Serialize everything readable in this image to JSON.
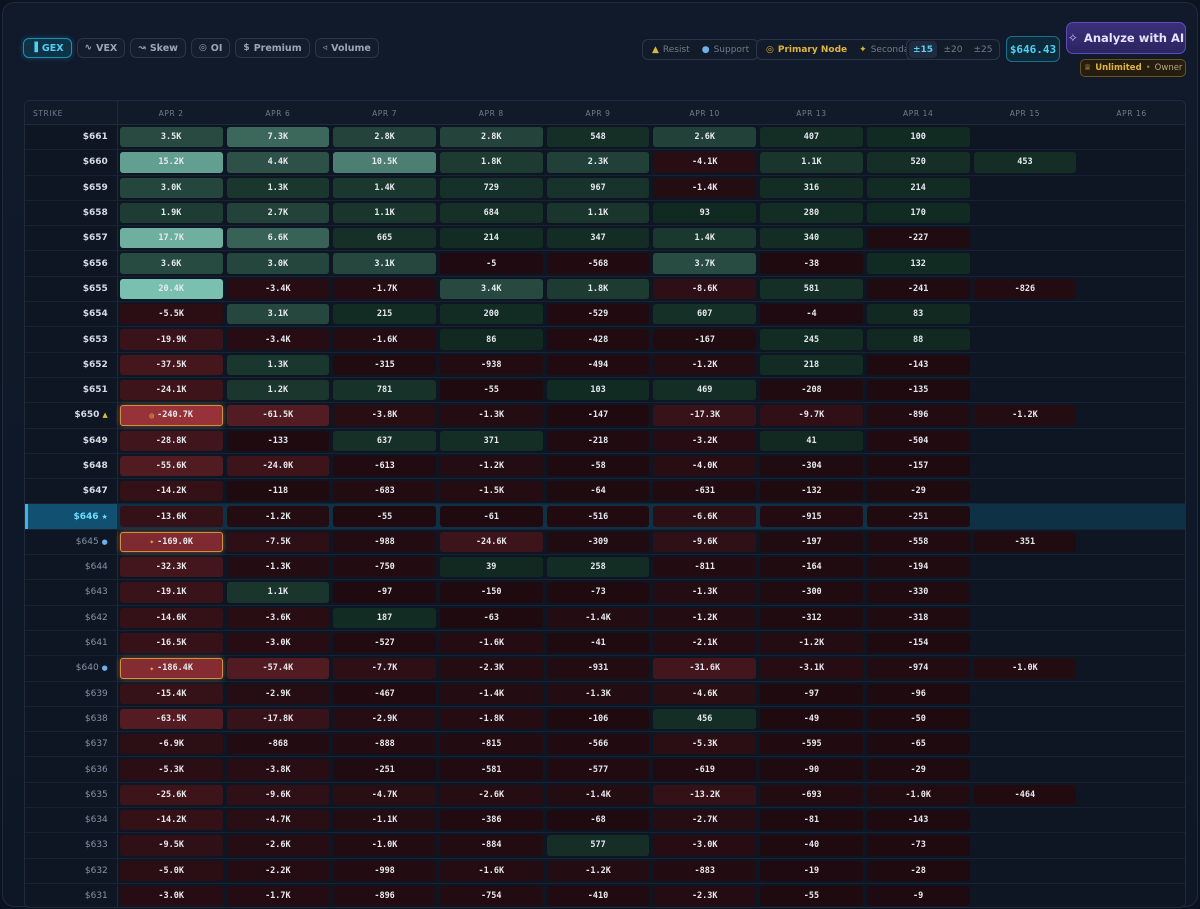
{
  "toolbar": {
    "metric_tabs": [
      {
        "label": "GEX",
        "icon": "bar-chart-icon",
        "glyph": "▐",
        "active": true
      },
      {
        "label": "VEX",
        "icon": "activity-icon",
        "glyph": "∿",
        "active": false
      },
      {
        "label": "Skew",
        "icon": "trend-icon",
        "glyph": "↝",
        "active": false
      },
      {
        "label": "OI",
        "icon": "target-icon",
        "glyph": "◎",
        "active": false
      },
      {
        "label": "Premium",
        "icon": "dollar-icon",
        "glyph": "$",
        "active": false
      },
      {
        "label": "Volume",
        "icon": "speaker-icon",
        "glyph": "◃",
        "active": false
      }
    ],
    "legend_levels": {
      "resist_label": "Resist",
      "support_label": "Support"
    },
    "legend_nodes": {
      "primary_label": "Primary Node",
      "secondary_label": "Secondary"
    },
    "ranges": [
      {
        "label": "±15",
        "active": true
      },
      {
        "label": "±20",
        "active": false
      },
      {
        "label": "±25",
        "active": false
      }
    ],
    "price": "$646.43",
    "ai_button_label": "Analyze with AI",
    "plan": {
      "tier": "Unlimited",
      "sep": "•",
      "role": "Owner"
    }
  },
  "grid": {
    "strike_header": "STRIKE",
    "columns": [
      "APR 2",
      "APR 6",
      "APR 7",
      "APR 8",
      "APR 9",
      "APR 10",
      "APR 13",
      "APR 14",
      "APR 15",
      "APR 16"
    ],
    "colors": {
      "positive": "#2f7f6a",
      "negative": "#6b1f28",
      "current_row": "#0f3145"
    },
    "rows": [
      {
        "strike": "$661",
        "values": [
          "3.5K",
          "7.3K",
          "2.8K",
          "2.8K",
          "548",
          "2.6K",
          "407",
          "100",
          "",
          ""
        ]
      },
      {
        "strike": "$660",
        "values": [
          "15.2K",
          "4.4K",
          "10.5K",
          "1.8K",
          "2.3K",
          "-4.1K",
          "1.1K",
          "520",
          "453",
          ""
        ]
      },
      {
        "strike": "$659",
        "values": [
          "3.0K",
          "1.3K",
          "1.4K",
          "729",
          "967",
          "-1.4K",
          "316",
          "214",
          "",
          ""
        ]
      },
      {
        "strike": "$658",
        "values": [
          "1.9K",
          "2.7K",
          "1.1K",
          "684",
          "1.1K",
          "93",
          "280",
          "170",
          "",
          ""
        ]
      },
      {
        "strike": "$657",
        "values": [
          "17.7K",
          "6.6K",
          "665",
          "214",
          "347",
          "1.4K",
          "340",
          "-227",
          "",
          ""
        ]
      },
      {
        "strike": "$656",
        "values": [
          "3.6K",
          "3.0K",
          "3.1K",
          "-5",
          "-568",
          "3.7K",
          "-38",
          "132",
          "",
          ""
        ]
      },
      {
        "strike": "$655",
        "values": [
          "20.4K",
          "-3.4K",
          "-1.7K",
          "3.4K",
          "1.8K",
          "-8.6K",
          "581",
          "-241",
          "-826",
          ""
        ]
      },
      {
        "strike": "$654",
        "values": [
          "-5.5K",
          "3.1K",
          "215",
          "200",
          "-529",
          "607",
          "-4",
          "83",
          "",
          ""
        ]
      },
      {
        "strike": "$653",
        "values": [
          "-19.9K",
          "-3.4K",
          "-1.6K",
          "86",
          "-428",
          "-167",
          "245",
          "88",
          "",
          ""
        ]
      },
      {
        "strike": "$652",
        "values": [
          "-37.5K",
          "1.3K",
          "-315",
          "-938",
          "-494",
          "-1.2K",
          "218",
          "-143",
          "",
          ""
        ]
      },
      {
        "strike": "$651",
        "values": [
          "-24.1K",
          "1.2K",
          "781",
          "-55",
          "103",
          "469",
          "-208",
          "-135",
          "",
          ""
        ]
      },
      {
        "strike": "$650",
        "marker": "resist",
        "node": {
          "col": 0,
          "type": "primary"
        },
        "values": [
          "-240.7K",
          "-61.5K",
          "-3.8K",
          "-1.3K",
          "-147",
          "-17.3K",
          "-9.7K",
          "-896",
          "-1.2K",
          ""
        ]
      },
      {
        "strike": "$649",
        "values": [
          "-28.8K",
          "-133",
          "637",
          "371",
          "-218",
          "-3.2K",
          "41",
          "-504",
          "",
          ""
        ]
      },
      {
        "strike": "$648",
        "values": [
          "-55.6K",
          "-24.0K",
          "-613",
          "-1.2K",
          "-58",
          "-4.0K",
          "-304",
          "-157",
          "",
          ""
        ]
      },
      {
        "strike": "$647",
        "values": [
          "-14.2K",
          "-118",
          "-683",
          "-1.5K",
          "-64",
          "-631",
          "-132",
          "-29",
          "",
          ""
        ]
      },
      {
        "strike": "$646",
        "marker": "current",
        "values": [
          "-13.6K",
          "-1.2K",
          "-55",
          "-61",
          "-516",
          "-6.6K",
          "-915",
          "-251",
          "",
          ""
        ]
      },
      {
        "strike": "$645",
        "marker": "support",
        "node": {
          "col": 0,
          "type": "secondary"
        },
        "values": [
          "-169.0K",
          "-7.5K",
          "-988",
          "-24.6K",
          "-309",
          "-9.6K",
          "-197",
          "-558",
          "-351",
          ""
        ]
      },
      {
        "strike": "$644",
        "values": [
          "-32.3K",
          "-1.3K",
          "-750",
          "39",
          "258",
          "-811",
          "-164",
          "-194",
          "",
          ""
        ]
      },
      {
        "strike": "$643",
        "values": [
          "-19.1K",
          "1.1K",
          "-97",
          "-150",
          "-73",
          "-1.3K",
          "-300",
          "-330",
          "",
          ""
        ]
      },
      {
        "strike": "$642",
        "values": [
          "-14.6K",
          "-3.6K",
          "187",
          "-63",
          "-1.4K",
          "-1.2K",
          "-312",
          "-318",
          "",
          ""
        ]
      },
      {
        "strike": "$641",
        "values": [
          "-16.5K",
          "-3.0K",
          "-527",
          "-1.6K",
          "-41",
          "-2.1K",
          "-1.2K",
          "-154",
          "",
          ""
        ]
      },
      {
        "strike": "$640",
        "marker": "support",
        "node": {
          "col": 0,
          "type": "secondary"
        },
        "values": [
          "-186.4K",
          "-57.4K",
          "-7.7K",
          "-2.3K",
          "-931",
          "-31.6K",
          "-3.1K",
          "-974",
          "-1.0K",
          ""
        ]
      },
      {
        "strike": "$639",
        "values": [
          "-15.4K",
          "-2.9K",
          "-467",
          "-1.4K",
          "-1.3K",
          "-4.6K",
          "-97",
          "-96",
          "",
          ""
        ]
      },
      {
        "strike": "$638",
        "values": [
          "-63.5K",
          "-17.8K",
          "-2.9K",
          "-1.8K",
          "-106",
          "456",
          "-49",
          "-50",
          "",
          ""
        ]
      },
      {
        "strike": "$637",
        "values": [
          "-6.9K",
          "-868",
          "-888",
          "-815",
          "-566",
          "-5.3K",
          "-595",
          "-65",
          "",
          ""
        ]
      },
      {
        "strike": "$636",
        "values": [
          "-5.3K",
          "-3.8K",
          "-251",
          "-581",
          "-577",
          "-619",
          "-90",
          "-29",
          "",
          ""
        ]
      },
      {
        "strike": "$635",
        "values": [
          "-25.6K",
          "-9.6K",
          "-4.7K",
          "-2.6K",
          "-1.4K",
          "-13.2K",
          "-693",
          "-1.0K",
          "-464",
          ""
        ]
      },
      {
        "strike": "$634",
        "values": [
          "-14.2K",
          "-4.7K",
          "-1.1K",
          "-386",
          "-68",
          "-2.7K",
          "-81",
          "-143",
          "",
          ""
        ]
      },
      {
        "strike": "$633",
        "values": [
          "-9.5K",
          "-2.6K",
          "-1.0K",
          "-884",
          "577",
          "-3.0K",
          "-40",
          "-73",
          "",
          ""
        ]
      },
      {
        "strike": "$632",
        "values": [
          "-5.0K",
          "-2.2K",
          "-998",
          "-1.6K",
          "-1.2K",
          "-883",
          "-19",
          "-28",
          "",
          ""
        ]
      },
      {
        "strike": "$631",
        "values": [
          "-3.0K",
          "-1.7K",
          "-896",
          "-754",
          "-410",
          "-2.3K",
          "-55",
          "-9",
          "",
          ""
        ]
      }
    ]
  }
}
